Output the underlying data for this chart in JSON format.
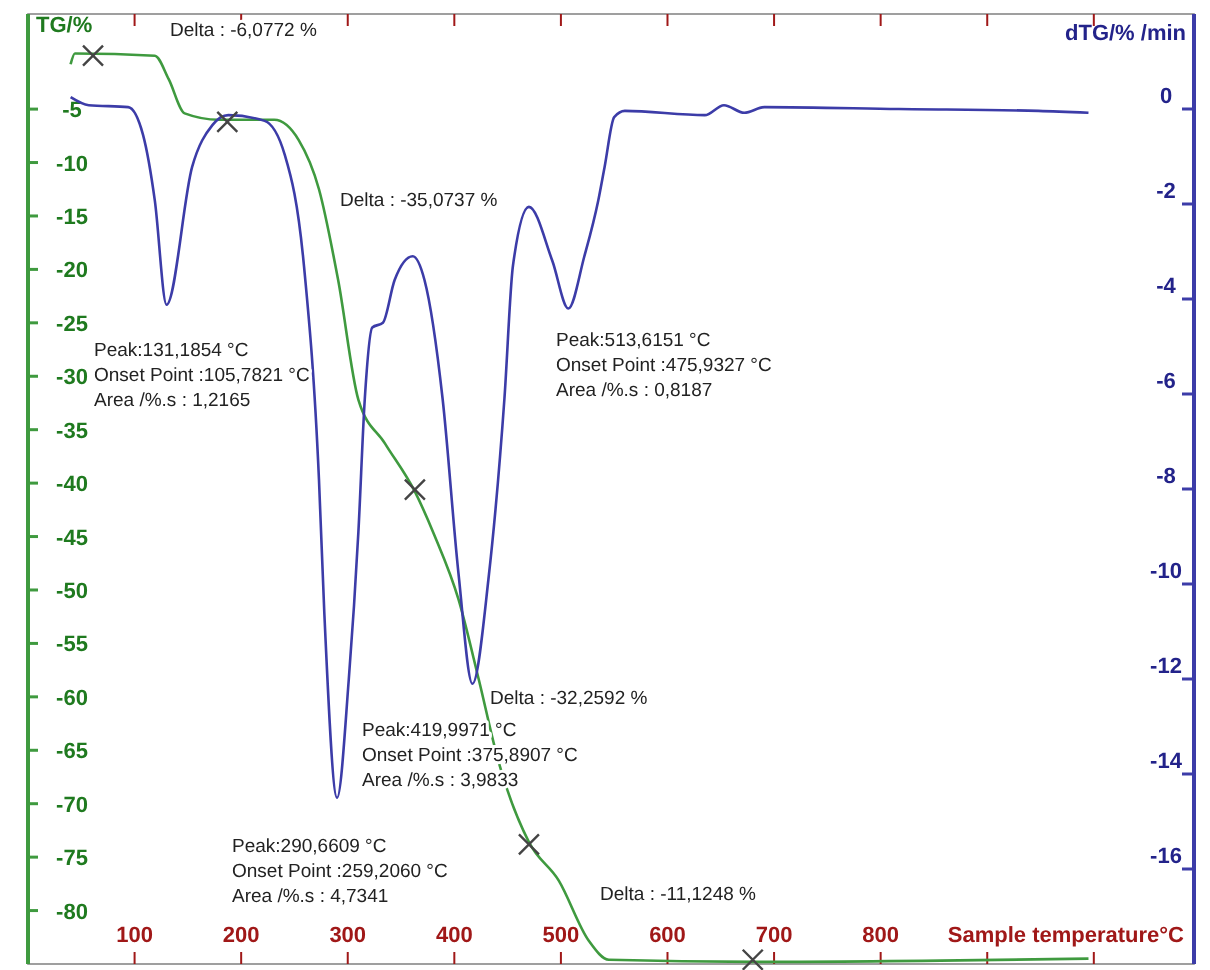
{
  "chart_data": {
    "type": "line",
    "xlabel": "Sample temperature°C",
    "ylabel": "TG/%",
    "y2label": "dTG/% /min",
    "xlim": [
      0,
      1094
    ],
    "xticks": [
      100,
      200,
      300,
      400,
      500,
      600,
      700,
      800,
      {
        "value": 900,
        "label": null
      },
      {
        "value": 1000,
        "label": null
      }
    ],
    "ylim": [
      -85,
      3.9
    ],
    "yticks": [
      -5,
      -10,
      -15,
      -20,
      -25,
      -30,
      -35,
      -40,
      -45,
      -50,
      -55,
      -60,
      -65,
      -70,
      -75,
      -80
    ],
    "y2lim": [
      -18,
      2
    ],
    "y2ticks": [
      0,
      -2,
      -4,
      -6,
      -8,
      -10,
      -12,
      -14,
      -16
    ],
    "grid": false,
    "marker": "none",
    "line_style": "solid",
    "series": [
      {
        "color": "#3f9a3f",
        "axis": "y",
        "x": [
          40,
          44,
          119,
          132,
          147,
          179,
          231,
          254,
          273,
          291,
          310,
          335,
          363,
          381,
          404,
          423,
          441,
          470,
          498,
          526,
          545,
          682,
          995
        ],
        "values": [
          -0.8,
          0.2,
          0,
          -2.2,
          -5.4,
          -6.0,
          -6.0,
          -7.9,
          -12.5,
          -21.0,
          -32.2,
          -36.3,
          -40.8,
          -44.8,
          -50.9,
          -58.4,
          -65.9,
          -73.6,
          -77.2,
          -82.8,
          -84.6,
          -84.8,
          -84.5
        ]
      },
      {
        "color": "#3c3ca8",
        "axis": "y2",
        "x": [
          40,
          57,
          94,
          108,
          119,
          130,
          154,
          173,
          188,
          222,
          241,
          259,
          273,
          278,
          290,
          301,
          310,
          316,
          323,
          333,
          344,
          361,
          372,
          389,
          404,
          417,
          432,
          447,
          455,
          470,
          492,
          507,
          522,
          535,
          541,
          550,
          560,
          635,
          653,
          672,
          691,
          817,
          948,
          995
        ],
        "values": [
          0.25,
          0.08,
          0.04,
          -0.55,
          -1.93,
          -4.12,
          -1.22,
          -0.34,
          -0.13,
          -0.25,
          -0.97,
          -3.32,
          -7.8,
          -10.6,
          -14.5,
          -12.0,
          -8.9,
          -6.1,
          -4.6,
          -4.5,
          -3.6,
          -3.1,
          -3.6,
          -6.1,
          -9.8,
          -12.1,
          -9.9,
          -6.1,
          -3.3,
          -2.06,
          -3.2,
          -4.2,
          -3.1,
          -1.93,
          -1.22,
          -0.17,
          -0.04,
          -0.13,
          0.08,
          -0.08,
          0.04,
          0,
          -0.04,
          -0.08
        ]
      },
      {
        "type": "scatter",
        "marker": "cross",
        "color": "#444444",
        "axis": "y",
        "x": [
          61,
          187,
          363,
          470,
          680
        ],
        "values": [
          0,
          -6.2,
          -40.6,
          -73.8,
          -84.6
        ]
      }
    ],
    "annotations": [
      "Delta : -6,0772  %",
      "Delta : -35,0737  %",
      "Peak:131,1854 °C\nOnset Point :105,7821 °C\nArea /%.s : 1,2165",
      "Peak:513,6151 °C\nOnset Point :475,9327 °C\nArea /%.s : 0,8187",
      "Delta : -32,2592  %",
      "Peak:419,9971 °C\nOnset Point :375,8907 °C\nArea /%.s : 3,9833",
      "Peak:290,6609 °C\nOnset Point :259,2060 °C\nArea /%.s : 4,7341",
      "Delta : -11,1248  %"
    ]
  }
}
